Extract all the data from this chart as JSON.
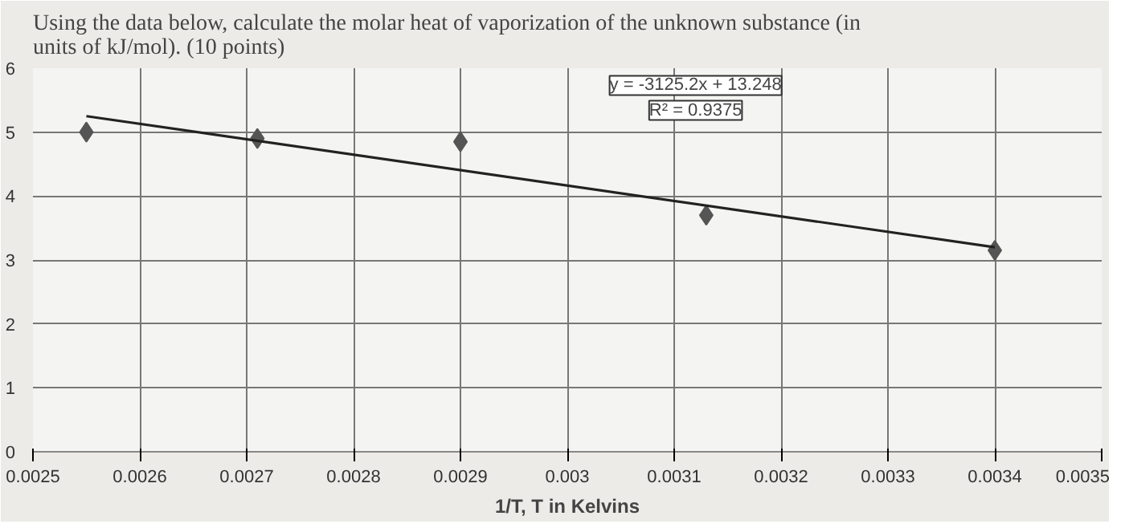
{
  "chart_data": {
    "type": "scatter",
    "title": "Using the data below, calculate the molar heat of vaporization of the unknown substance (in units of kJ/mol). (10 points)",
    "xlabel": "1/T, T in Kelvins",
    "series": [
      {
        "marker": "diamond",
        "color": "#555555",
        "x": [
          0.00255,
          0.00271,
          0.0029,
          0.00313,
          0.0034
        ],
        "values": [
          5.0,
          4.9,
          4.85,
          3.7,
          3.15
        ]
      },
      {
        "type": "line",
        "marker": "none",
        "color": "#222222",
        "x": [
          0.00255,
          0.0034
        ],
        "values": [
          5.25,
          3.2
        ]
      }
    ],
    "annotations": [
      "y = -3125.2x + 13.248",
      "R² = 0.9375"
    ],
    "xlim": [
      0.0025,
      0.0035
    ],
    "ylim": [
      0,
      6
    ],
    "xticks": [
      0.0025,
      0.0026,
      0.0027,
      0.0028,
      0.0029,
      0.003,
      0.0031,
      0.0032,
      0.0033,
      0.0034,
      0.0035
    ],
    "yticks": [
      0,
      1,
      2,
      3,
      4,
      5,
      6
    ],
    "grid": true
  }
}
